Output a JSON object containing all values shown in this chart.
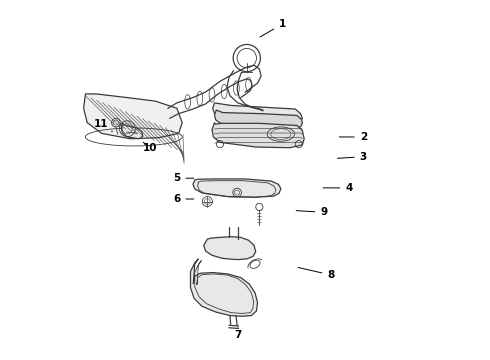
{
  "bg_color": "#ffffff",
  "line_color": "#3a3a3a",
  "label_color": "#000000",
  "figsize": [
    4.9,
    3.6
  ],
  "dpi": 100,
  "label_positions": {
    "1": {
      "text": [
        0.605,
        0.935
      ],
      "arrow": [
        0.535,
        0.895
      ]
    },
    "2": {
      "text": [
        0.83,
        0.62
      ],
      "arrow": [
        0.755,
        0.62
      ]
    },
    "3": {
      "text": [
        0.83,
        0.565
      ],
      "arrow": [
        0.75,
        0.56
      ]
    },
    "4": {
      "text": [
        0.79,
        0.478
      ],
      "arrow": [
        0.71,
        0.478
      ]
    },
    "5": {
      "text": [
        0.31,
        0.505
      ],
      "arrow": [
        0.365,
        0.505
      ]
    },
    "6": {
      "text": [
        0.31,
        0.447
      ],
      "arrow": [
        0.365,
        0.447
      ]
    },
    "7": {
      "text": [
        0.48,
        0.068
      ],
      "arrow": [
        0.48,
        0.09
      ]
    },
    "8": {
      "text": [
        0.74,
        0.235
      ],
      "arrow": [
        0.64,
        0.258
      ]
    },
    "9": {
      "text": [
        0.72,
        0.41
      ],
      "arrow": [
        0.635,
        0.415
      ]
    },
    "10": {
      "text": [
        0.235,
        0.59
      ],
      "arrow": [
        0.21,
        0.61
      ]
    },
    "11": {
      "text": [
        0.1,
        0.655
      ],
      "arrow": [
        0.13,
        0.635
      ]
    }
  }
}
